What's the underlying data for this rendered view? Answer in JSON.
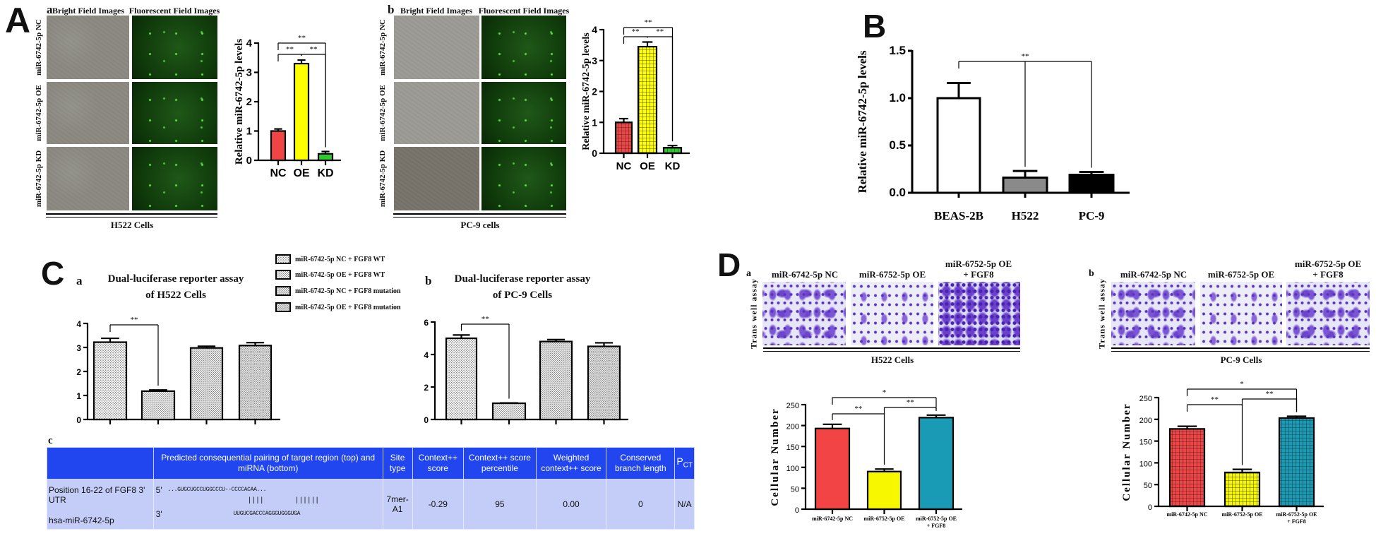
{
  "figure": {
    "A": {
      "letter": "A",
      "a": {
        "sub": "a",
        "col_headers": [
          "Bright Field Images",
          "Fluorescent Field Images"
        ],
        "row_labels": [
          "miR-6742-5p NC",
          "miR-6742-5p OE",
          "miR-6742-5p KD"
        ],
        "caption": "H522 Cells"
      },
      "b": {
        "sub": "b",
        "col_headers": [
          "Bright Field Images",
          "Fluorescent Field Images"
        ],
        "row_labels": [
          "miR-6742-5p NC",
          "miR-6742-5p OE",
          "miR-6742-5p KD"
        ],
        "caption": "PC-9 cells"
      }
    },
    "B": {
      "letter": "B"
    },
    "C": {
      "letter": "C",
      "a": {
        "sub": "a",
        "title_lines": [
          "Dual-luciferase reporter assay",
          "of H522 Cells"
        ]
      },
      "b": {
        "sub": "b",
        "title_lines": [
          "Dual-luciferase reporter assay",
          "of PC-9 Cells"
        ]
      },
      "legend": [
        "miR-6742-5p NC + FGF8 WT",
        "miR-6742-5p OE + FGF8 WT",
        "miR-6742-5p NC + FGF8 mutation",
        "miR-6742-5p OE + FGF8 mutation"
      ],
      "c": {
        "sub": "c",
        "headers": [
          "",
          "Predicted consequential pairing of target region (top) and miRNA (bottom)",
          "Site type",
          "Context++ score",
          "Context++ score percentile",
          "Weighted context++ score",
          "Conserved branch length"
        ],
        "pct_header": {
          "p": "P",
          "sub": "CT"
        },
        "row": {
          "position": "Position 16-22 of FGF8 3' UTR",
          "mirna": "hsa-miR-6742-5p",
          "five_prime": "5'",
          "three_prime": "3'",
          "target_seq": "...GUGCUGCCUGGCCCU--CCCCACAA...",
          "pairing_left": "||||",
          "pairing_right": "||||||",
          "mirna_seq": "UUGUCGACCCAGGGUGGGUGA",
          "site_type": "7mer-A1",
          "context_score": "-0.29",
          "context_percentile": "95",
          "weighted_context": "0.00",
          "branch_length": "0",
          "pct": "N/A"
        }
      }
    },
    "D": {
      "letter": "D",
      "a": {
        "sub": "a",
        "col_headers": [
          "miR-6742-5p NC",
          "miR-6752-5p OE",
          "miR-6752-5p OE",
          "+ FGF8"
        ],
        "row_label": "Trans well assay",
        "caption": "H522 Cells"
      },
      "b": {
        "sub": "b",
        "col_headers": [
          "miR-6742-5p NC",
          "miR-6752-5p OE",
          "miR-6752-5p OE",
          "+ FGF8"
        ],
        "row_label": "Trans well assay",
        "caption": "PC-9 Cells"
      }
    }
  },
  "chart_data": [
    {
      "id": "A-a",
      "type": "bar",
      "categories": [
        "NC",
        "OE",
        "KD"
      ],
      "values": [
        1.0,
        3.3,
        0.22
      ],
      "error_upper": [
        1.07,
        3.42,
        0.3
      ],
      "ylabel": "Relative miR-6742-5p levels",
      "ylim": [
        0,
        4
      ],
      "yticks": [
        "0",
        "1",
        "2",
        "3",
        "4"
      ],
      "colors": [
        "#f04545",
        "#ffff00",
        "#2ecc2e"
      ],
      "fill_style": "solid",
      "significance": [
        {
          "from": 0,
          "to": [
            2
          ],
          "label": "**"
        },
        {
          "from": 0,
          "to": [
            1
          ],
          "label": "**"
        },
        {
          "from": 1,
          "to": [
            2
          ],
          "label": "**"
        }
      ]
    },
    {
      "id": "A-b",
      "type": "bar",
      "categories": [
        "NC",
        "OE",
        "KD"
      ],
      "values": [
        1.0,
        3.45,
        0.18
      ],
      "error_upper": [
        1.12,
        3.6,
        0.25
      ],
      "ylabel": "Relative miR-6742-5p levels",
      "ylim": [
        0,
        4
      ],
      "yticks": [
        "0",
        "1",
        "2",
        "3",
        "4"
      ],
      "colors": [
        "#f04545",
        "#ffff00",
        "#2ecc2e"
      ],
      "fill_style": "grid",
      "significance": [
        {
          "from": 0,
          "to": [
            2
          ],
          "label": "**"
        },
        {
          "from": 0,
          "to": [
            1
          ],
          "label": "**"
        },
        {
          "from": 1,
          "to": [
            2
          ],
          "label": "**"
        }
      ]
    },
    {
      "id": "B",
      "type": "bar",
      "categories": [
        "BEAS-2B",
        "H522",
        "PC-9"
      ],
      "values": [
        1.0,
        0.16,
        0.19
      ],
      "error_upper": [
        1.16,
        0.23,
        0.22
      ],
      "ylabel": "Relative miR-6742-5p levels",
      "ylim": [
        0,
        1.5
      ],
      "yticks": [
        "0.0",
        "0.5",
        "1.0",
        "1.5"
      ],
      "colors": [
        "#ffffff",
        "#8a8a8a",
        "#000000"
      ],
      "fill_style": "solid",
      "significance": [
        {
          "from": 0,
          "to": [
            1,
            2
          ],
          "label": "**"
        }
      ]
    },
    {
      "id": "C-a",
      "type": "bar",
      "categories": [
        "miR-6742-5p NC + FGF8 WT",
        "miR-6742-5p OE + FGF8 WT",
        "miR-6742-5p NC + FGF8 mutation",
        "miR-6742-5p OE + FGF8 mutation"
      ],
      "values": [
        3.22,
        1.18,
        2.98,
        3.08
      ],
      "error_upper": [
        3.38,
        1.23,
        3.05,
        3.2
      ],
      "ylim": [
        0,
        4
      ],
      "yticks": [
        "0",
        "1",
        "2",
        "3",
        "4"
      ],
      "colors": [
        "#d8d8d8",
        "#c4c4c4",
        "#b0b0b0",
        "#9a9a9a"
      ],
      "fill_style": "stipple",
      "legend": "top-right",
      "significance": [
        {
          "from": 0,
          "to": [
            1
          ],
          "label": "**"
        }
      ]
    },
    {
      "id": "C-b",
      "type": "bar",
      "categories": [
        "miR-6742-5p NC + FGF8 WT",
        "miR-6742-5p OE + FGF8 WT",
        "miR-6742-5p NC + FGF8 mutation",
        "miR-6742-5p OE + FGF8 mutation"
      ],
      "values": [
        5.0,
        1.0,
        4.8,
        4.5
      ],
      "error_upper": [
        5.2,
        1.02,
        4.92,
        4.72
      ],
      "ylim": [
        0,
        6
      ],
      "yticks": [
        "0",
        "2",
        "4",
        "6"
      ],
      "colors": [
        "#d8d8d8",
        "#c4c4c4",
        "#b0b0b0",
        "#9a9a9a"
      ],
      "fill_style": "stipple",
      "significance": [
        {
          "from": 0,
          "to": [
            1
          ],
          "label": "**"
        }
      ]
    },
    {
      "id": "D-a",
      "type": "bar",
      "categories": [
        "miR-6742-5p NC",
        "miR-6752-5p OE",
        "miR-6752-5p OE\n+ FGF8"
      ],
      "values": [
        193,
        90,
        219
      ],
      "error_upper": [
        203,
        96,
        225
      ],
      "ylabel": "Cellular Number",
      "ylim": [
        0,
        250
      ],
      "yticks": [
        "0",
        "50",
        "100",
        "150",
        "200",
        "250"
      ],
      "colors": [
        "#f24444",
        "#f7f700",
        "#1a9bb5"
      ],
      "fill_style": "solid",
      "significance": [
        {
          "from": 0,
          "to": [
            2
          ],
          "label": "*"
        },
        {
          "from": 0,
          "to": [
            1
          ],
          "label": "**"
        },
        {
          "from": 1,
          "to": [
            2
          ],
          "label": "**"
        }
      ]
    },
    {
      "id": "D-b",
      "type": "bar",
      "categories": [
        "miR-6742-5p NC",
        "miR-6752-5p OE",
        "miR-6752-5p OE\n+ FGF8"
      ],
      "values": [
        178,
        78,
        203
      ],
      "error_upper": [
        184,
        85,
        207
      ],
      "ylabel": "Cellular Number",
      "ylim": [
        0,
        250
      ],
      "yticks": [
        "0",
        "50",
        "100",
        "150",
        "200",
        "250"
      ],
      "colors": [
        "#f24444",
        "#f7f700",
        "#1a9bb5"
      ],
      "fill_style": "grid",
      "significance": [
        {
          "from": 0,
          "to": [
            2
          ],
          "label": "*"
        },
        {
          "from": 0,
          "to": [
            1
          ],
          "label": "**"
        },
        {
          "from": 1,
          "to": [
            2
          ],
          "label": "**"
        }
      ]
    }
  ]
}
